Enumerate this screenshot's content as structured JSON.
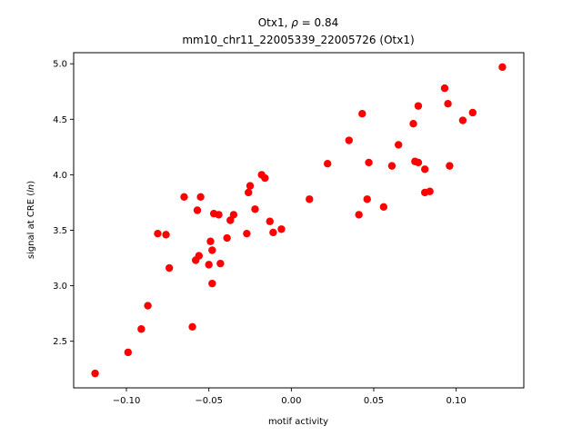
{
  "chart_data": {
    "type": "scatter",
    "title_line1_text": "Otx1, ",
    "title_line1_rho": "ρ",
    "title_line1_value": " = 0.84",
    "title_line2": "mm10_chr11_22005339_22005726 (Otx1)",
    "xlabel": "motif activity",
    "ylabel_prefix": "signal at CRE (",
    "ylabel_italic": "ln",
    "ylabel_suffix": ")",
    "xlim": [
      -0.132,
      0.141
    ],
    "ylim": [
      2.08,
      5.1
    ],
    "xticks": [
      -0.1,
      -0.05,
      0.0,
      0.05,
      0.1
    ],
    "xtick_labels": [
      "−0.10",
      "−0.05",
      "0.00",
      "0.05",
      "0.10"
    ],
    "yticks": [
      2.5,
      3.0,
      3.5,
      4.0,
      4.5,
      5.0
    ],
    "ytick_labels": [
      "2.5",
      "3.0",
      "3.5",
      "4.0",
      "4.5",
      "5.0"
    ],
    "grid": false,
    "marker_color": "#ff0000",
    "points": [
      {
        "x": -0.119,
        "y": 2.21
      },
      {
        "x": -0.099,
        "y": 2.4
      },
      {
        "x": -0.091,
        "y": 2.61
      },
      {
        "x": -0.087,
        "y": 2.82
      },
      {
        "x": -0.081,
        "y": 3.47
      },
      {
        "x": -0.076,
        "y": 3.46
      },
      {
        "x": -0.074,
        "y": 3.16
      },
      {
        "x": -0.065,
        "y": 3.8
      },
      {
        "x": -0.06,
        "y": 2.63
      },
      {
        "x": -0.058,
        "y": 3.23
      },
      {
        "x": -0.056,
        "y": 3.27
      },
      {
        "x": -0.057,
        "y": 3.68
      },
      {
        "x": -0.055,
        "y": 3.8
      },
      {
        "x": -0.05,
        "y": 3.19
      },
      {
        "x": -0.049,
        "y": 3.4
      },
      {
        "x": -0.048,
        "y": 3.32
      },
      {
        "x": -0.048,
        "y": 3.02
      },
      {
        "x": -0.047,
        "y": 3.65
      },
      {
        "x": -0.044,
        "y": 3.64
      },
      {
        "x": -0.043,
        "y": 3.2
      },
      {
        "x": -0.039,
        "y": 3.43
      },
      {
        "x": -0.037,
        "y": 3.59
      },
      {
        "x": -0.035,
        "y": 3.64
      },
      {
        "x": -0.027,
        "y": 3.47
      },
      {
        "x": -0.026,
        "y": 3.84
      },
      {
        "x": -0.025,
        "y": 3.9
      },
      {
        "x": -0.022,
        "y": 3.69
      },
      {
        "x": -0.018,
        "y": 4.0
      },
      {
        "x": -0.016,
        "y": 3.97
      },
      {
        "x": -0.013,
        "y": 3.58
      },
      {
        "x": -0.011,
        "y": 3.48
      },
      {
        "x": -0.006,
        "y": 3.51
      },
      {
        "x": 0.011,
        "y": 3.78
      },
      {
        "x": 0.022,
        "y": 4.1
      },
      {
        "x": 0.035,
        "y": 4.31
      },
      {
        "x": 0.041,
        "y": 3.64
      },
      {
        "x": 0.043,
        "y": 4.55
      },
      {
        "x": 0.046,
        "y": 3.78
      },
      {
        "x": 0.047,
        "y": 4.11
      },
      {
        "x": 0.056,
        "y": 3.71
      },
      {
        "x": 0.061,
        "y": 4.08
      },
      {
        "x": 0.065,
        "y": 4.27
      },
      {
        "x": 0.074,
        "y": 4.46
      },
      {
        "x": 0.075,
        "y": 4.12
      },
      {
        "x": 0.077,
        "y": 4.11
      },
      {
        "x": 0.077,
        "y": 4.62
      },
      {
        "x": 0.081,
        "y": 4.05
      },
      {
        "x": 0.081,
        "y": 3.84
      },
      {
        "x": 0.084,
        "y": 3.85
      },
      {
        "x": 0.093,
        "y": 4.78
      },
      {
        "x": 0.095,
        "y": 4.64
      },
      {
        "x": 0.096,
        "y": 4.08
      },
      {
        "x": 0.104,
        "y": 4.49
      },
      {
        "x": 0.11,
        "y": 4.56
      },
      {
        "x": 0.128,
        "y": 4.97
      }
    ]
  }
}
